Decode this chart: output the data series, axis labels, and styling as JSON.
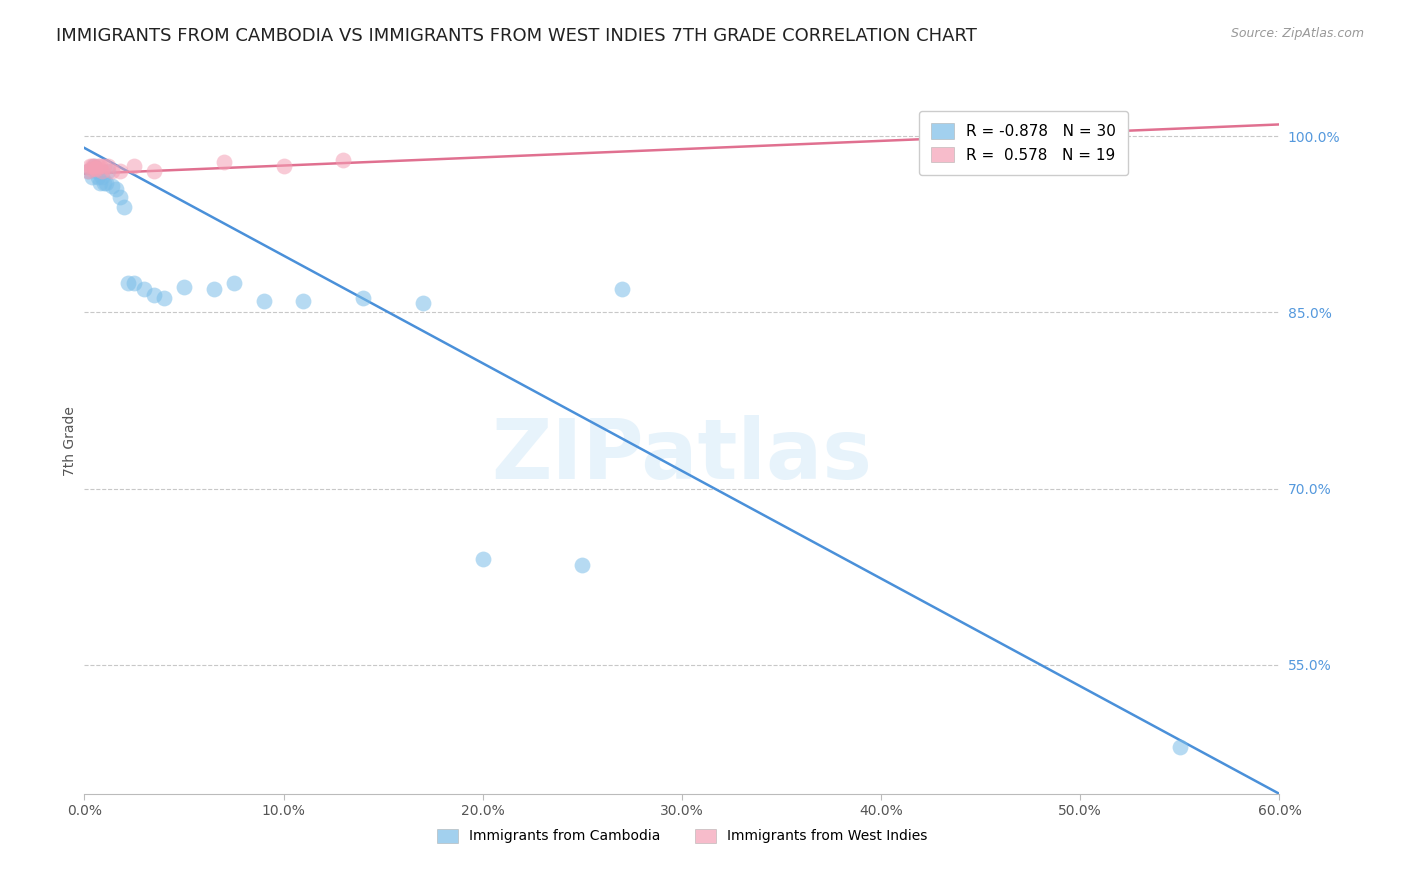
{
  "title": "IMMIGRANTS FROM CAMBODIA VS IMMIGRANTS FROM WEST INDIES 7TH GRADE CORRELATION CHART",
  "source": "Source: ZipAtlas.com",
  "ylabel_left": "7th Grade",
  "xlabel_ticks": [
    "0.0%",
    "10.0%",
    "20.0%",
    "30.0%",
    "40.0%",
    "50.0%",
    "60.0%"
  ],
  "xlabel_values": [
    0.0,
    10.0,
    20.0,
    30.0,
    40.0,
    50.0,
    60.0
  ],
  "ylabel_right_ticks": [
    "100.0%",
    "85.0%",
    "70.0%",
    "55.0%"
  ],
  "ylabel_right_values": [
    1.0,
    0.85,
    0.7,
    0.55
  ],
  "xlim": [
    0.0,
    60.0
  ],
  "ylim": [
    0.44,
    1.04
  ],
  "legend_blue_r": "-0.878",
  "legend_blue_n": "30",
  "legend_pink_r": "0.578",
  "legend_pink_n": "19",
  "blue_color": "#7bbde8",
  "blue_line_color": "#4a90d9",
  "pink_color": "#f4a0b5",
  "pink_line_color": "#e07090",
  "blue_scatter_x": [
    0.2,
    0.4,
    0.5,
    0.6,
    0.7,
    0.8,
    0.9,
    1.0,
    1.1,
    1.2,
    1.4,
    1.6,
    1.8,
    2.0,
    2.2,
    2.5,
    3.0,
    3.5,
    4.0,
    5.0,
    6.5,
    7.5,
    9.0,
    11.0,
    14.0,
    17.0,
    20.0,
    25.0,
    55.0,
    27.0
  ],
  "blue_scatter_y": [
    0.97,
    0.965,
    0.975,
    0.97,
    0.965,
    0.96,
    0.965,
    0.96,
    0.96,
    0.97,
    0.958,
    0.955,
    0.948,
    0.94,
    0.875,
    0.875,
    0.87,
    0.865,
    0.862,
    0.872,
    0.87,
    0.875,
    0.86,
    0.86,
    0.862,
    0.858,
    0.64,
    0.635,
    0.48,
    0.87
  ],
  "pink_scatter_x": [
    0.2,
    0.3,
    0.4,
    0.5,
    0.6,
    0.7,
    0.8,
    0.9,
    1.0,
    1.2,
    1.4,
    1.8,
    2.5,
    3.5,
    7.0,
    10.0,
    13.0,
    0.35,
    0.55
  ],
  "pink_scatter_y": [
    0.97,
    0.975,
    0.975,
    0.975,
    0.972,
    0.975,
    0.975,
    0.97,
    0.975,
    0.975,
    0.97,
    0.97,
    0.975,
    0.97,
    0.978,
    0.975,
    0.98,
    0.972,
    0.973
  ],
  "blue_line_x0": 0.0,
  "blue_line_x1": 60.0,
  "blue_line_y0": 0.99,
  "blue_line_y1": 0.44,
  "pink_line_x0": 0.0,
  "pink_line_x1": 60.0,
  "pink_line_y0": 0.968,
  "pink_line_y1": 1.01,
  "watermark_text": "ZIPatlas",
  "background_color": "#ffffff",
  "grid_color": "#c8c8c8",
  "title_fontsize": 13,
  "axis_label_fontsize": 10,
  "tick_fontsize": 10,
  "source_fontsize": 9,
  "legend_fontsize": 11
}
